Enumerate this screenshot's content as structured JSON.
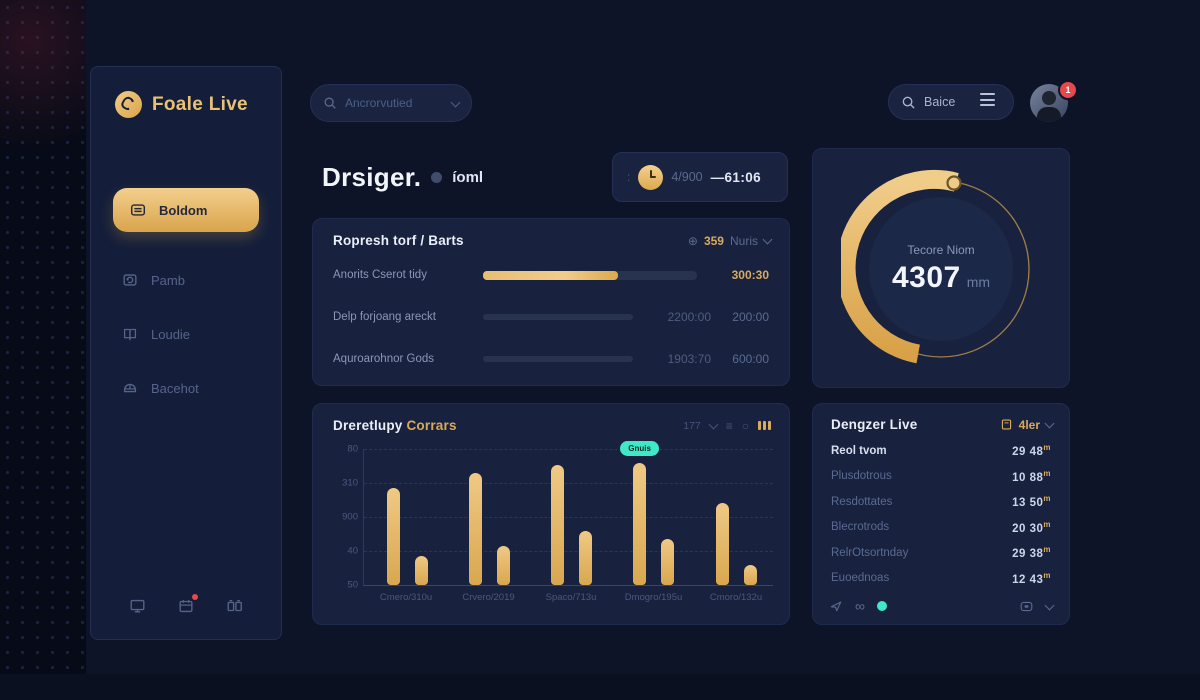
{
  "colors": {
    "background": "#0D1428",
    "panel": "#18223F",
    "sidebar": "#141E3A",
    "gold": "#E4B76B",
    "gold_dark": "#D9A44C",
    "muted": "#5A6A90",
    "white": "#E9EEF7",
    "teal": "#3FE8C6",
    "red": "#E5484D"
  },
  "sidebar": {
    "logo_text": "Foale Live",
    "items": [
      {
        "label": "Boldom",
        "icon": "card-icon",
        "active": true
      },
      {
        "label": "Pamb",
        "icon": "refresh-box-icon",
        "active": false
      },
      {
        "label": "Loudie",
        "icon": "book-icon",
        "active": false
      },
      {
        "label": "Bacehot",
        "icon": "helmet-icon",
        "active": false
      }
    ],
    "footer_icons": [
      {
        "icon": "monitor-icon",
        "notification": false
      },
      {
        "icon": "calendar-icon",
        "notification": true
      },
      {
        "icon": "grid-icon",
        "notification": false
      }
    ]
  },
  "topbar": {
    "search_placeholder": "Ancrorvutied",
    "search_right_value": "Baice",
    "avatar_badge": "1"
  },
  "main": {
    "title": "Drsiger.",
    "title_suffix": "íoml",
    "stat_pill": {
      "prefix": ":",
      "value1": "4/900",
      "value2": "—61:06"
    }
  },
  "report_panel": {
    "title": "Ropresh torf / Barts",
    "meta_icon_glyph": "⊕",
    "meta_value": "359",
    "meta_label": "Nuris",
    "rows": [
      {
        "label": "Anorits Cserot tidy",
        "progress": 63,
        "wide": true,
        "value1": "",
        "value2": "300:30",
        "value2_gold": true
      },
      {
        "label": "Delp forjoang areckt",
        "progress": 0,
        "wide": false,
        "value1": "2200:00",
        "value2": "200:00",
        "value2_gold": false
      },
      {
        "label": "Aquroarohnor Gods",
        "progress": 0,
        "wide": false,
        "value1": "1903:70",
        "value2": "600:00",
        "value2_gold": false
      }
    ]
  },
  "chart_panel": {
    "title_white": "Dreretlupy",
    "title_gold": "Corrars",
    "meta_text": "177",
    "menu_glyph": "≡",
    "circle_glyph": "○"
  },
  "chart_data": [
    {
      "type": "bar",
      "title": "Dreretlupy Corrars",
      "categories": [
        "Cmero/310u",
        "Crvero/2019",
        "Spaco/713u",
        "Dmogro/195u",
        "Cmoro/132u"
      ],
      "series": [
        {
          "name": "primary",
          "values": [
            71,
            82,
            88,
            90,
            60
          ]
        },
        {
          "name": "secondary",
          "values": [
            21,
            29,
            40,
            34,
            15
          ]
        }
      ],
      "yticks": [
        "80",
        "310",
        "900",
        "40",
        "50"
      ],
      "ylim": [
        0,
        100
      ],
      "grid": true,
      "legend": false,
      "annotation": {
        "label": "Gnuis",
        "category_index": 3,
        "series_index": 0
      }
    },
    {
      "type": "donut",
      "title": "Tecore Niom",
      "value": "4307",
      "unit": "mm",
      "percent": 57
    }
  ],
  "list_panel": {
    "title": "Dengzer Live",
    "filter_label": "4ler",
    "rows": [
      {
        "label": "Reol tvom",
        "value": "29 48",
        "unit": "m",
        "strong": true
      },
      {
        "label": "Plusdotrous",
        "value": "10 88",
        "unit": "m",
        "strong": false
      },
      {
        "label": "Resdottates",
        "value": "13 50",
        "unit": "m",
        "strong": false
      },
      {
        "label": "Blecrotrods",
        "value": "20 30",
        "unit": "m",
        "strong": false
      },
      {
        "label": "RelrOtsortnday",
        "value": "29 38",
        "unit": "m",
        "strong": false
      },
      {
        "label": "Euoednoas",
        "value": "12 43",
        "unit": "m",
        "strong": false
      }
    ],
    "footer": {
      "infinity_glyph": "∞"
    }
  }
}
